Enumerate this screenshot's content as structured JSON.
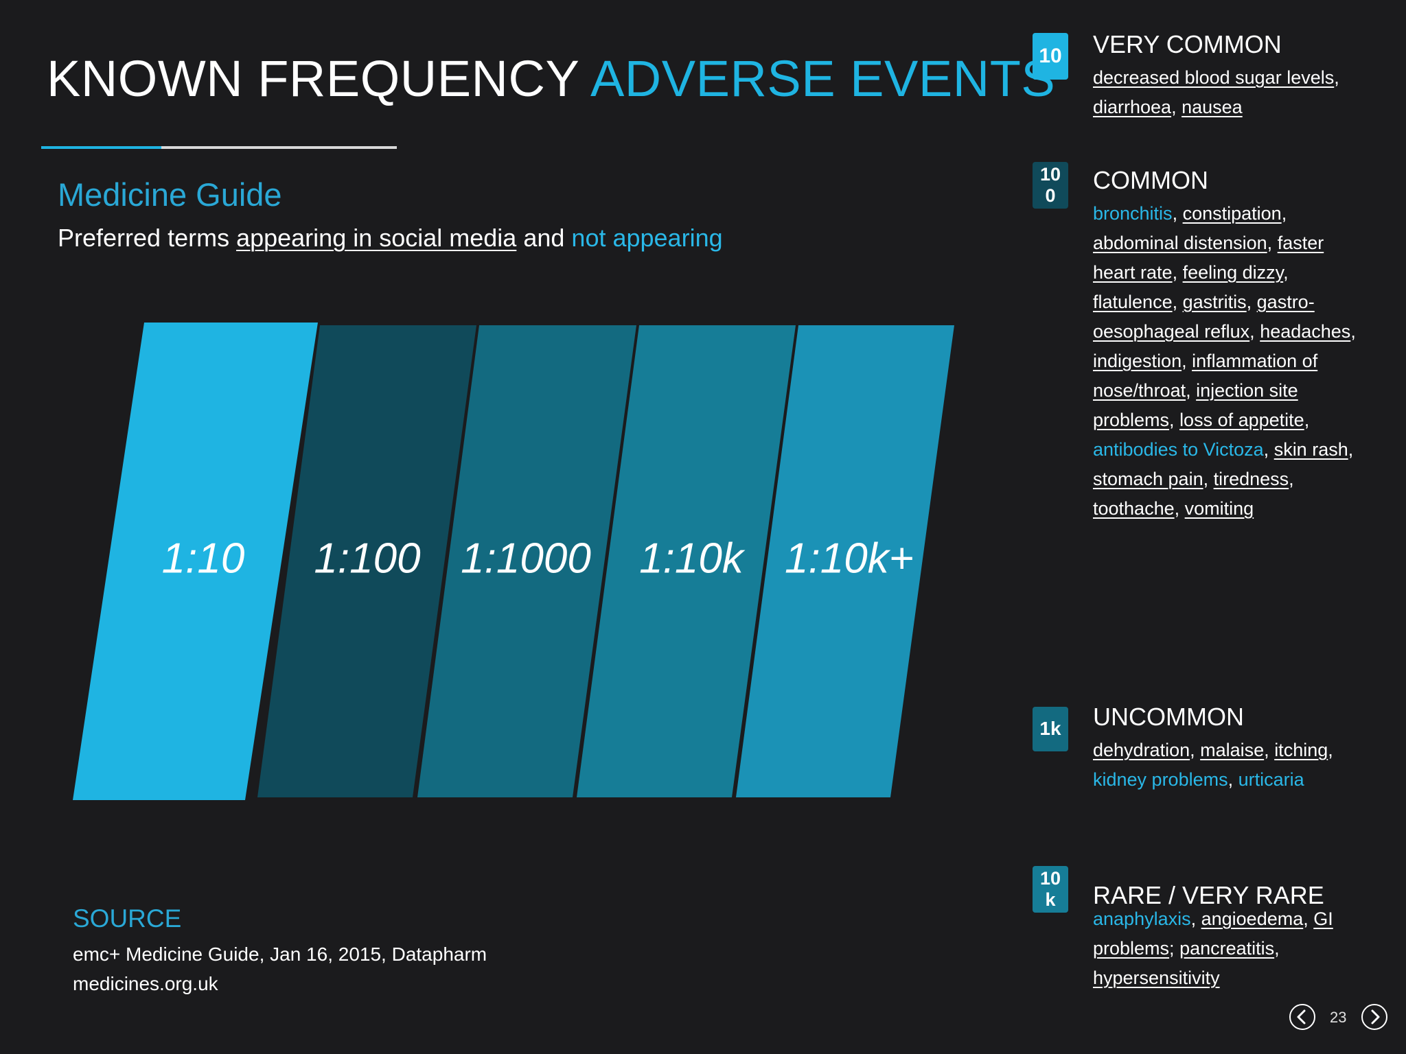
{
  "header": {
    "title_part1": "KNOWN FREQUENCY",
    "title_part2": "ADVERSE EVENTS"
  },
  "subtitle": "Medicine Guide",
  "subline": {
    "pre": "Preferred terms ",
    "appearing": "appearing in social media",
    "mid": " and ",
    "not_appearing": "not appearing"
  },
  "bands": [
    {
      "label": "1:10",
      "color": "#1fb4e2"
    },
    {
      "label": "1:100",
      "color": "#104a5a"
    },
    {
      "label": "1:1000",
      "color": "#136a80"
    },
    {
      "label": "1:10k",
      "color": "#167d97"
    },
    {
      "label": "1:10k+",
      "color": "#1b92b6"
    }
  ],
  "source": {
    "heading": "SOURCE",
    "line1": "emc+ Medicine Guide, Jan 16, 2015, Datapharm",
    "line2": "medicines.org.uk"
  },
  "categories": [
    {
      "badge_lines": [
        "10"
      ],
      "badge_color": "#1fb4e2",
      "title": "VERY COMMON",
      "terms": [
        {
          "text": "decreased blood sugar levels",
          "appears": true
        },
        {
          "text": "diarrhoea",
          "appears": true
        },
        {
          "text": "nausea",
          "appears": true
        }
      ]
    },
    {
      "badge_lines": [
        "10",
        "0"
      ],
      "badge_color": "#104a5a",
      "title": "COMMON",
      "terms": [
        {
          "text": "bronchitis",
          "appears": false
        },
        {
          "text": "constipation",
          "appears": true
        },
        {
          "text": "abdominal distension",
          "appears": true
        },
        {
          "text": "faster heart rate",
          "appears": true
        },
        {
          "text": "feeling dizzy",
          "appears": true
        },
        {
          "text": "flatulence",
          "appears": true
        },
        {
          "text": "gastritis",
          "appears": true
        },
        {
          "text": "gastro-oesophageal reflux",
          "appears": true
        },
        {
          "text": "headaches",
          "appears": true
        },
        {
          "text": "indigestion",
          "appears": true
        },
        {
          "text": "inflammation of nose/throat",
          "appears": true
        },
        {
          "text": "injection site problems",
          "appears": true
        },
        {
          "text": "loss of appetite",
          "appears": true
        },
        {
          "text": "antibodies to Victoza",
          "appears": false
        },
        {
          "text": "skin rash",
          "appears": true
        },
        {
          "text": "stomach pain",
          "appears": true
        },
        {
          "text": "tiredness",
          "appears": true
        },
        {
          "text": "toothache",
          "appears": true
        },
        {
          "text": "vomiting",
          "appears": true
        }
      ]
    },
    {
      "badge_lines": [
        "1k"
      ],
      "badge_color": "#136a80",
      "title": "UNCOMMON",
      "terms": [
        {
          "text": "dehydration",
          "appears": true
        },
        {
          "text": "malaise",
          "appears": true
        },
        {
          "text": "itching",
          "appears": true
        },
        {
          "text": "kidney problems",
          "appears": false
        },
        {
          "text": "urticaria",
          "appears": false
        }
      ]
    },
    {
      "badge_lines": [
        "10",
        "k"
      ],
      "badge_color": "#167d97",
      "title": "RARE / VERY RARE",
      "terms": [
        {
          "text": "anaphylaxis",
          "appears": false
        },
        {
          "text": "angioedema",
          "appears": true
        },
        {
          "text": "GI problems",
          "appears": true,
          "sep": ";"
        },
        {
          "text": "pancreatitis",
          "appears": true
        },
        {
          "text": "hypersensitivity",
          "appears": true
        }
      ]
    }
  ],
  "footer": {
    "page": "23"
  }
}
